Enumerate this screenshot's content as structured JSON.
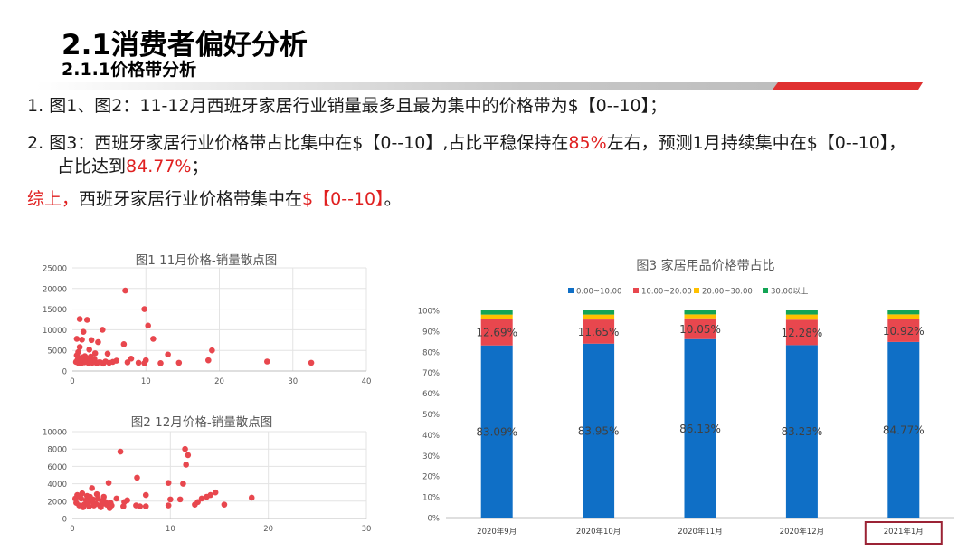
{
  "header": {
    "title": "2.1消费者偏好分析",
    "subtitle": "2.1.1价格带分析"
  },
  "bullets": {
    "b1_num": "1.",
    "b1_text": "图1、图2：11-12月西班牙家居行业销量最多且最为集中的价格带为$【0--10】；",
    "b2_num": "2.",
    "b2_text_a": "图3：西班牙家居行业价格带占比集中在$【0--10】,占比平稳保持在",
    "b2_hl1": "85%",
    "b2_text_b": "左右，预测1月持续集中在$【0--10】，",
    "b2_text_c": "占比达到",
    "b2_hl2": "84.77%",
    "b2_text_d": "；",
    "b3_red": "综上，",
    "b3_text": "西班牙家居行业价格带集中在",
    "b3_hl": "$【0--10】",
    "b3_end": "。"
  },
  "colors": {
    "scatter_point": "#e8474e",
    "bar_blue": "#0f6fc6",
    "bar_red": "#e8474e",
    "bar_yellow": "#ffc000",
    "bar_green": "#13a455",
    "highlight_red": "#e02020",
    "box_border": "#9b2335"
  },
  "chart_data": [
    {
      "type": "scatter",
      "title": "图1  11月价格-销量散点图",
      "xlim": [
        0,
        40
      ],
      "ylim": [
        0,
        25000
      ],
      "xticks": [
        "0",
        "10",
        "20",
        "30",
        "40"
      ],
      "yticks": [
        "0",
        "5000",
        "10000",
        "15000",
        "20000",
        "25000"
      ],
      "grid": true,
      "points": [
        [
          7.2,
          19500
        ],
        [
          9.8,
          15000
        ],
        [
          10.3,
          11000
        ],
        [
          1.0,
          12600
        ],
        [
          2.0,
          12400
        ],
        [
          4.1,
          10000
        ],
        [
          1.5,
          9500
        ],
        [
          0.6,
          7800
        ],
        [
          1.3,
          7600
        ],
        [
          11.0,
          7800
        ],
        [
          2.6,
          7500
        ],
        [
          3.5,
          7000
        ],
        [
          7.0,
          6500
        ],
        [
          1.0,
          5800
        ],
        [
          2.3,
          5200
        ],
        [
          19.0,
          5000
        ],
        [
          0.8,
          4600
        ],
        [
          3.1,
          4300
        ],
        [
          4.8,
          4200
        ],
        [
          13.0,
          4000
        ],
        [
          0.6,
          3800
        ],
        [
          1.7,
          3600
        ],
        [
          2.5,
          3500
        ],
        [
          0.9,
          3100
        ],
        [
          8.0,
          3000
        ],
        [
          18.5,
          2600
        ],
        [
          26.5,
          2300
        ],
        [
          32.5,
          2000
        ],
        [
          14.5,
          2000
        ],
        [
          12.0,
          1900
        ],
        [
          10.0,
          2600
        ],
        [
          9.8,
          1900
        ],
        [
          6.0,
          2500
        ],
        [
          5.5,
          2200
        ],
        [
          5.0,
          2000
        ],
        [
          4.2,
          1800
        ],
        [
          3.8,
          2100
        ],
        [
          3.3,
          1900
        ],
        [
          2.9,
          2400
        ],
        [
          2.7,
          2000
        ],
        [
          2.2,
          1900
        ],
        [
          1.9,
          2600
        ],
        [
          1.6,
          2100
        ],
        [
          1.4,
          2500
        ],
        [
          1.2,
          1900
        ],
        [
          1.0,
          2300
        ],
        [
          0.8,
          2000
        ],
        [
          0.5,
          2200
        ],
        [
          3.0,
          2900
        ],
        [
          2.0,
          3100
        ],
        [
          1.1,
          2800
        ],
        [
          2.8,
          2700
        ],
        [
          7.5,
          2100
        ],
        [
          9.0,
          2000
        ],
        [
          1.8,
          2200
        ],
        [
          2.4,
          2300
        ],
        [
          3.6,
          2100
        ],
        [
          4.5,
          2300
        ],
        [
          0.7,
          2700
        ],
        [
          1.3,
          3300
        ]
      ]
    },
    {
      "type": "scatter",
      "title": "图2  12月价格-销量散点图",
      "xlim": [
        0,
        30
      ],
      "ylim": [
        0,
        10000
      ],
      "xticks": [
        "0",
        "10",
        "20",
        "30"
      ],
      "yticks": [
        "0",
        "2000",
        "4000",
        "6000",
        "8000",
        "10000"
      ],
      "grid": true,
      "points": [
        [
          4.9,
          7700
        ],
        [
          11.5,
          8000
        ],
        [
          11.8,
          7300
        ],
        [
          11.6,
          6200
        ],
        [
          6.6,
          4700
        ],
        [
          3.7,
          4100
        ],
        [
          9.8,
          4100
        ],
        [
          11.3,
          4000
        ],
        [
          2.0,
          3500
        ],
        [
          14.6,
          3000
        ],
        [
          14.1,
          2700
        ],
        [
          13.7,
          2500
        ],
        [
          13.2,
          2300
        ],
        [
          18.3,
          2400
        ],
        [
          7.5,
          2700
        ],
        [
          10.0,
          2200
        ],
        [
          11.0,
          2200
        ],
        [
          12.8,
          1900
        ],
        [
          12.5,
          1600
        ],
        [
          15.5,
          1600
        ],
        [
          9.8,
          1500
        ],
        [
          7.5,
          1400
        ],
        [
          6.9,
          1400
        ],
        [
          6.5,
          1500
        ],
        [
          5.3,
          1900
        ],
        [
          5.6,
          2100
        ],
        [
          5.2,
          1400
        ],
        [
          4.5,
          2300
        ],
        [
          3.4,
          1900
        ],
        [
          2.5,
          2800
        ],
        [
          1.0,
          2900
        ],
        [
          0.5,
          2700
        ],
        [
          1.5,
          2600
        ],
        [
          2.1,
          2200
        ],
        [
          3.0,
          2000
        ],
        [
          3.5,
          1600
        ],
        [
          3.9,
          1800
        ],
        [
          3.2,
          2500
        ],
        [
          2.8,
          1500
        ],
        [
          2.4,
          1700
        ],
        [
          2.0,
          2000
        ],
        [
          1.7,
          1400
        ],
        [
          1.4,
          2100
        ],
        [
          1.2,
          1600
        ],
        [
          0.9,
          2300
        ],
        [
          0.7,
          1500
        ],
        [
          0.4,
          1800
        ],
        [
          0.3,
          2300
        ],
        [
          1.1,
          1300
        ],
        [
          2.9,
          1300
        ],
        [
          3.8,
          1200
        ],
        [
          2.6,
          2300
        ],
        [
          1.8,
          2500
        ],
        [
          0.6,
          2600
        ],
        [
          4.0,
          1500
        ],
        [
          2.2,
          1500
        ],
        [
          1.6,
          1800
        ],
        [
          3.1,
          1700
        ]
      ]
    },
    {
      "type": "bar",
      "stacked": true,
      "title": "图3 家居用品价格带占比",
      "legend_position": "top",
      "categories": [
        "2020年9月",
        "2020年10月",
        "2020年11月",
        "2020年12月",
        "2021年1月"
      ],
      "highlighted_category": "2021年1月",
      "ylim": [
        0,
        100
      ],
      "yticks": [
        "0%",
        "10%",
        "20%",
        "30%",
        "40%",
        "50%",
        "60%",
        "70%",
        "80%",
        "90%",
        "100%"
      ],
      "series": [
        {
          "name": "0.00~10.00",
          "values": [
            83.09,
            83.95,
            86.13,
            83.23,
            84.77
          ],
          "labels": [
            "83.09%",
            "83.95%",
            "86.13%",
            "83.23%",
            "84.77%"
          ]
        },
        {
          "name": "10.00~20.00",
          "values": [
            12.69,
            11.65,
            10.05,
            12.28,
            10.92
          ],
          "labels": [
            "12.69%",
            "11.65%",
            "10.05%",
            "12.28%",
            "10.92%"
          ]
        },
        {
          "name": "20.00~30.00",
          "values": [
            2.2,
            2.4,
            1.9,
            2.5,
            2.4
          ]
        },
        {
          "name": "30.00以上",
          "values": [
            2.02,
            2.0,
            1.92,
            1.99,
            1.91
          ]
        }
      ]
    }
  ]
}
